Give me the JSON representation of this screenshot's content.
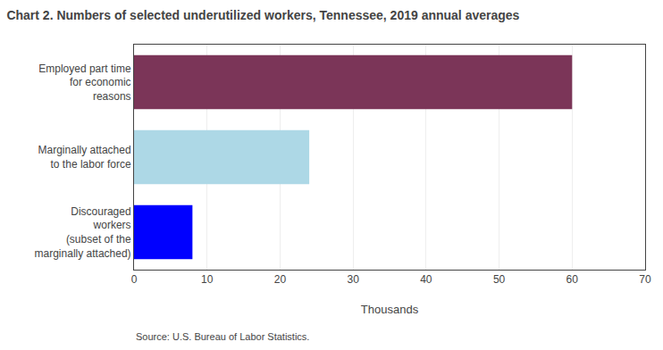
{
  "chart_data": {
    "type": "bar",
    "orientation": "horizontal",
    "title": "Chart 2. Numbers of selected underutilized workers, Tennessee, 2019 annual averages",
    "categories": [
      "Discouraged\nworkers\n(subset of the\nmarginally attached)",
      "Marginally attached\nto the labor force",
      "Employed part time\nfor economic\nreasons"
    ],
    "values": [
      8,
      24,
      60
    ],
    "colors": [
      "#0000FF",
      "#ADD8E6",
      "#7B3558"
    ],
    "xlabel": "Thousands",
    "xlim": [
      0,
      70
    ],
    "xticks": [
      0,
      10,
      20,
      30,
      40,
      50,
      60,
      70
    ],
    "grid": true,
    "source": "Source: U.S. Bureau of Labor Statistics."
  }
}
